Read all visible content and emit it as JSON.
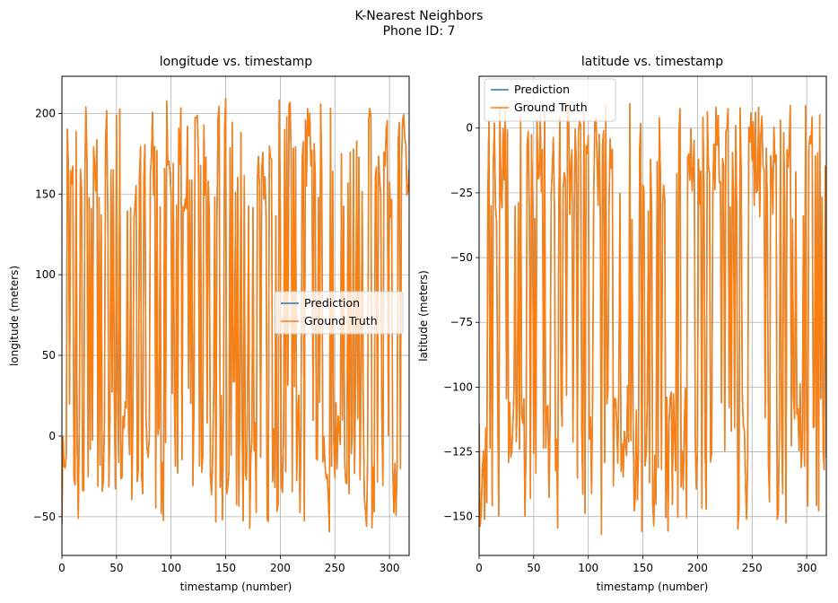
{
  "figure": {
    "title_line1": "K-Nearest Neighbors",
    "title_line2": "Phone ID: 7"
  },
  "colors": {
    "prediction": "#1f77b4",
    "ground_truth": "#ff7f0e",
    "grid": "#b0b0b0"
  },
  "chart_data": [
    {
      "type": "line",
      "title": "longitude vs. timestamp",
      "xlabel": "timestamp (number)",
      "ylabel": "longitude (meters)",
      "xlim": [
        0,
        318
      ],
      "ylim": [
        -74,
        223
      ],
      "xticks": [
        0,
        50,
        100,
        150,
        200,
        250,
        300
      ],
      "yticks": [
        -50,
        0,
        50,
        100,
        150,
        200
      ],
      "grid": true,
      "legend_placement": "center-right",
      "series": [
        {
          "name": "Prediction",
          "color": "#1f77b4",
          "values": []
        },
        {
          "name": "Ground Truth",
          "color": "#ff7f0e",
          "values": []
        }
      ],
      "data_note": "Dense oscillating signals roughly between -60 and 210 over 319 timestamps; prediction nearly identical to ground truth (one small deviation near timestamp 210)."
    },
    {
      "type": "line",
      "title": "latitude vs. timestamp",
      "xlabel": "timestamp (number)",
      "ylabel": "latitude (meters)",
      "xlim": [
        0,
        318
      ],
      "ylim": [
        -165,
        20
      ],
      "xticks": [
        0,
        50,
        100,
        150,
        200,
        250,
        300
      ],
      "yticks": [
        -150,
        -125,
        -100,
        -75,
        -50,
        -25,
        0
      ],
      "grid": true,
      "legend_placement": "upper-left",
      "series": [
        {
          "name": "Prediction",
          "color": "#1f77b4",
          "values": []
        },
        {
          "name": "Ground Truth",
          "color": "#ff7f0e",
          "values": []
        }
      ]
    }
  ]
}
